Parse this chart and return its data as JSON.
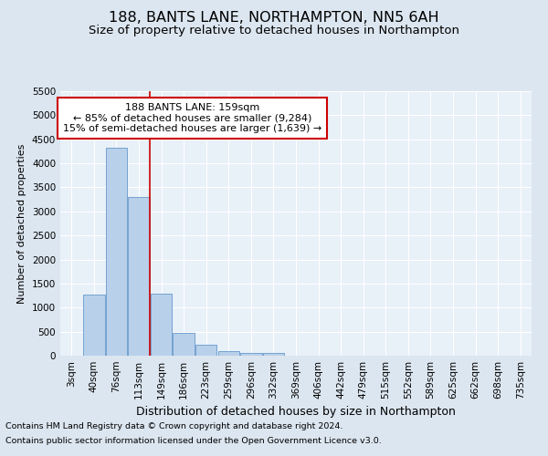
{
  "title": "188, BANTS LANE, NORTHAMPTON, NN5 6AH",
  "subtitle": "Size of property relative to detached houses in Northampton",
  "xlabel": "Distribution of detached houses by size in Northampton",
  "ylabel": "Number of detached properties",
  "footnote1": "Contains HM Land Registry data © Crown copyright and database right 2024.",
  "footnote2": "Contains public sector information licensed under the Open Government Licence v3.0.",
  "bar_labels": [
    "3sqm",
    "40sqm",
    "76sqm",
    "113sqm",
    "149sqm",
    "186sqm",
    "223sqm",
    "259sqm",
    "296sqm",
    "332sqm",
    "369sqm",
    "406sqm",
    "442sqm",
    "479sqm",
    "515sqm",
    "552sqm",
    "589sqm",
    "625sqm",
    "662sqm",
    "698sqm",
    "735sqm"
  ],
  "bar_values": [
    0,
    1270,
    4330,
    3300,
    1290,
    480,
    230,
    90,
    60,
    50,
    0,
    0,
    0,
    0,
    0,
    0,
    0,
    0,
    0,
    0,
    0
  ],
  "bar_color": "#b8d0ea",
  "bar_edge_color": "#6699cc",
  "vertical_line_x": 3.5,
  "vertical_line_color": "#cc0000",
  "annotation_line1": "188 BANTS LANE: 159sqm",
  "annotation_line2": "← 85% of detached houses are smaller (9,284)",
  "annotation_line3": "15% of semi-detached houses are larger (1,639) →",
  "annotation_box_color": "#ffffff",
  "annotation_box_edge_color": "#cc0000",
  "ylim": [
    0,
    5500
  ],
  "yticks": [
    0,
    500,
    1000,
    1500,
    2000,
    2500,
    3000,
    3500,
    4000,
    4500,
    5000,
    5500
  ],
  "bg_color": "#dce6f0",
  "plot_bg_color": "#e8f0f8",
  "grid_color": "#ffffff",
  "title_fontsize": 11.5,
  "subtitle_fontsize": 9.5,
  "xlabel_fontsize": 9,
  "ylabel_fontsize": 8,
  "tick_fontsize": 7.5,
  "annotation_fontsize": 8,
  "footnote_fontsize": 6.8
}
